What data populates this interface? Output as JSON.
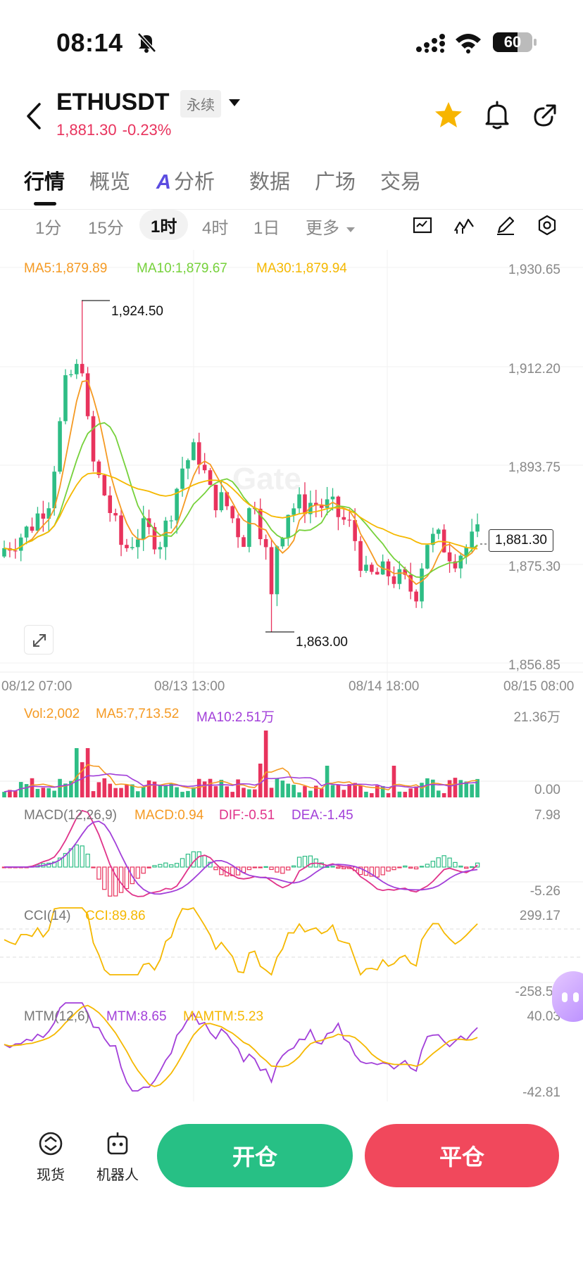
{
  "status": {
    "time": "08:14",
    "battery": "60"
  },
  "header": {
    "symbol": "ETHUSDT",
    "contract_tag": "永续",
    "last_price": "1,881.30",
    "change_pct": "-0.23%"
  },
  "tabs": [
    {
      "label": "行情",
      "active": true
    },
    {
      "label": "概览"
    },
    {
      "label": "分析",
      "badge": "A"
    },
    {
      "label": "数据"
    },
    {
      "label": "广场"
    },
    {
      "label": "交易"
    }
  ],
  "timeframes": [
    {
      "label": "1分"
    },
    {
      "label": "15分"
    },
    {
      "label": "1时",
      "active": true
    },
    {
      "label": "4时"
    },
    {
      "label": "1日"
    },
    {
      "label": "更多"
    }
  ],
  "main_legend": {
    "ma5": "MA5:1,879.89",
    "ma10": "MA10:1,879.67",
    "ma30": "MA30:1,879.94"
  },
  "price_axis": [
    "1,930.65",
    "1,912.20",
    "1,893.75",
    "1,875.30",
    "1,856.85"
  ],
  "high_marker": "1,924.50",
  "low_marker": "1,863.00",
  "current_price_tag": "1,881.30",
  "time_axis": [
    "08/12 07:00",
    "08/13 13:00",
    "08/14 18:00",
    "08/15 08:00"
  ],
  "watermark": "Gate",
  "volume_legend": {
    "vol": "Vol:2,002",
    "ma5": "MA5:7,713.52",
    "ma10": "MA10:2.51万"
  },
  "volume_axis": [
    "21.36万",
    "0.00"
  ],
  "macd_legend": {
    "name": "MACD(12,26,9)",
    "macd": "MACD:0.94",
    "dif": "DIF:-0.51",
    "dea": "DEA:-1.45"
  },
  "macd_axis": [
    "7.98",
    "-5.26"
  ],
  "cci_legend": {
    "name": "CCI(14)",
    "cci": "CCI:89.86"
  },
  "cci_axis": [
    "299.17",
    "-258.57"
  ],
  "mtm_legend": {
    "name": "MTM(12,6)",
    "mtm": "MTM:8.65",
    "mamtm": "MAMTM:5.23"
  },
  "mtm_axis": [
    "40.03",
    "-42.81"
  ],
  "colors": {
    "up": "#2ebd85",
    "down": "#e8335d",
    "ma5": "#f59a23",
    "ma10": "#76d13b",
    "ma30": "#f5b800",
    "macd_dif": "#e0338a",
    "macd_dea": "#a23fd9",
    "cci": "#f5b800",
    "mtm": "#a23fd9",
    "mamtm": "#f5b800"
  },
  "bottom": {
    "spot_label": "现货",
    "bot_label": "机器人",
    "open_label": "开仓",
    "close_label": "平仓"
  }
}
